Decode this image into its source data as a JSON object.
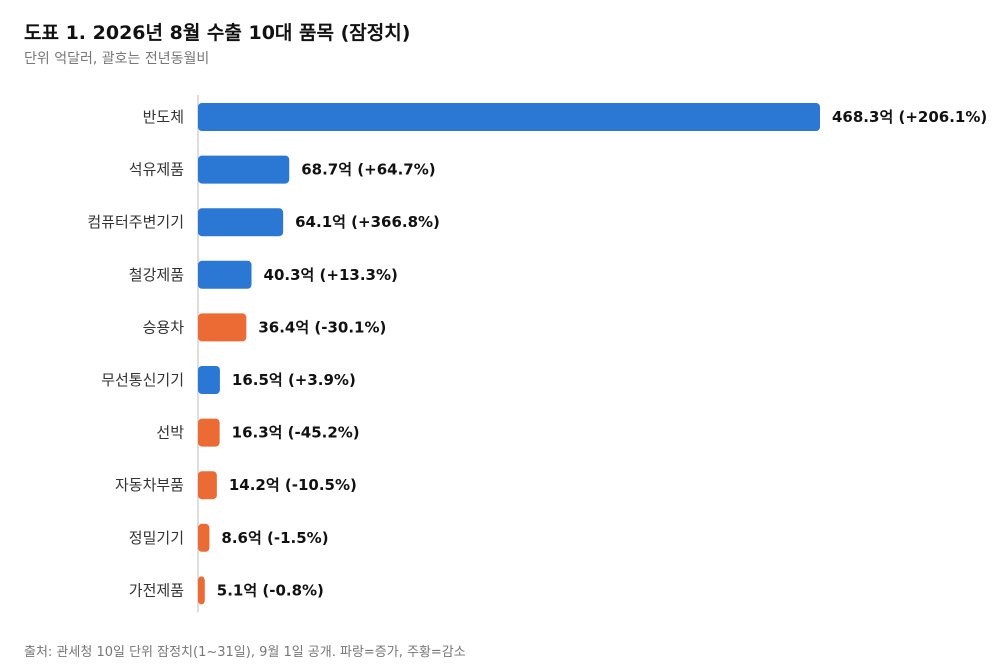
{
  "title": "도표 1. 2026년 8월 수출 10대 품목 (잠정치)",
  "subtitle": "단위 억달러, 괄호는 전년동월비",
  "source": "출처: 관세청 10일 단위 잠정치(1~31일), 9월 1일 공개. 파랑=증가, 주황=감소",
  "colors": {
    "increase": "#2b78d4",
    "decrease": "#ec6a33",
    "axis": "#bbbbbb"
  },
  "chart_data": {
    "type": "bar",
    "orientation": "horizontal",
    "categories": [
      "반도체",
      "석유제품",
      "컴퓨터주변기기",
      "철강제품",
      "승용차",
      "무선통신기기",
      "선박",
      "자동차부품",
      "정밀기기",
      "가전제품"
    ],
    "values": [
      468.3,
      68.7,
      64.1,
      40.3,
      36.4,
      16.5,
      16.3,
      14.2,
      8.6,
      5.1
    ],
    "changes": [
      206.1,
      64.7,
      366.8,
      13.3,
      -30.1,
      3.9,
      -45.2,
      -10.5,
      -1.5,
      -0.8
    ],
    "labels": [
      "468.3억 (+206.1%)",
      "68.7억 (+64.7%)",
      "64.1억 (+366.8%)",
      "40.3억 (+13.3%)",
      "36.4억 (-30.1%)",
      "16.5억 (+3.9%)",
      "16.3억 (-45.2%)",
      "14.2억 (-10.5%)",
      "8.6억 (-1.5%)",
      "5.1억 (-0.8%)"
    ],
    "xlim": [
      0,
      468.3
    ],
    "grid": false,
    "legend": "none"
  }
}
